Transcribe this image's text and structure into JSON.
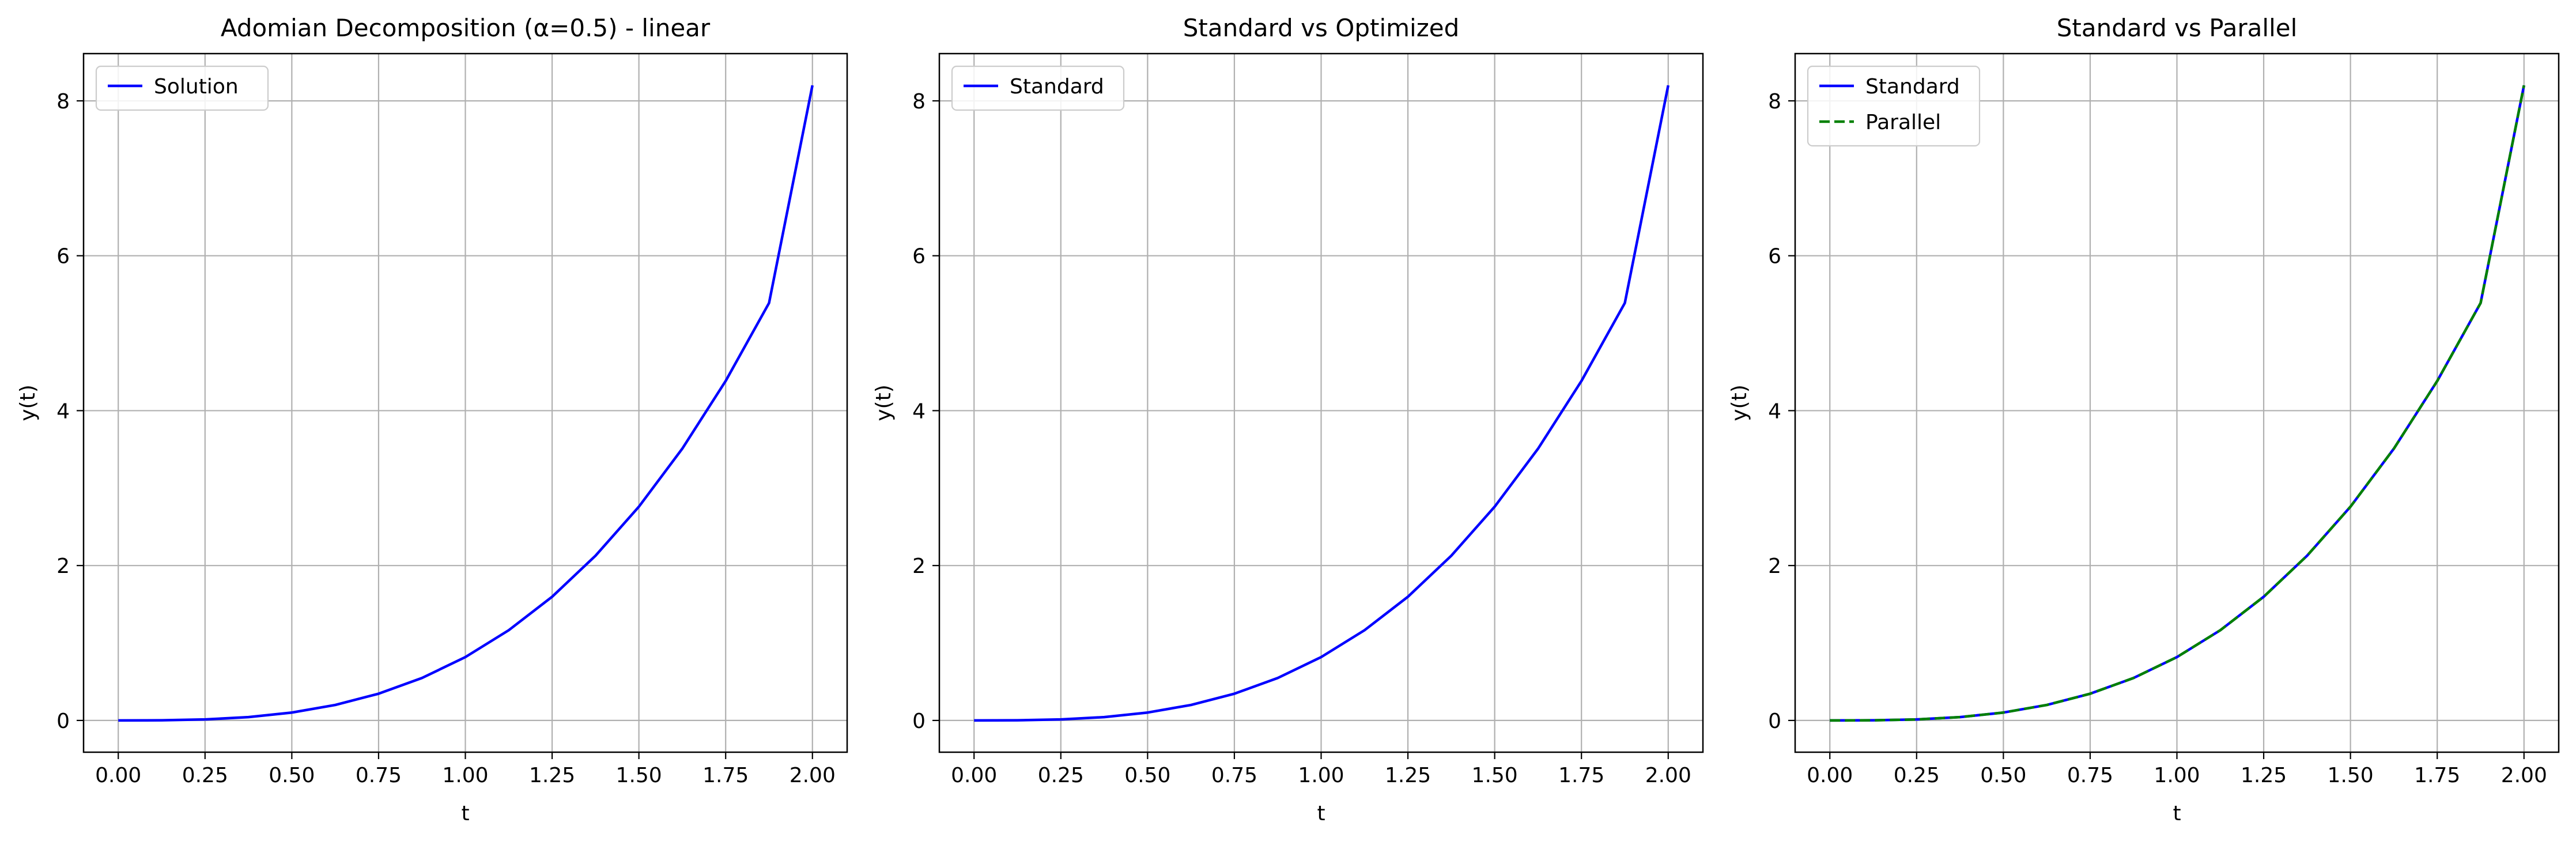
{
  "figure": {
    "background": "#ffffff"
  },
  "chart_data": [
    {
      "type": "line",
      "title": "Adomian Decomposition (α=0.5) - linear",
      "xlabel": "t",
      "ylabel": "y(t)",
      "xlim": [
        -0.1,
        2.1
      ],
      "ylim": [
        -0.41,
        8.61
      ],
      "xticks": [
        0,
        0.25,
        0.5,
        0.75,
        1.0,
        1.25,
        1.5,
        1.75,
        2.0
      ],
      "xtick_labels": [
        "0.00",
        "0.25",
        "0.50",
        "0.75",
        "1.00",
        "1.25",
        "1.50",
        "1.75",
        "2.00"
      ],
      "yticks": [
        0,
        2,
        4,
        6,
        8
      ],
      "ytick_labels": [
        "0",
        "2",
        "4",
        "6",
        "8"
      ],
      "grid": true,
      "legend_position": "upper-left",
      "series": [
        {
          "name": "Solution",
          "color": "#0000ff",
          "dash": "solid",
          "x": [
            0,
            0.125,
            0.25,
            0.375,
            0.5,
            0.625,
            0.75,
            0.875,
            1.0,
            1.125,
            1.25,
            1.375,
            1.5,
            1.625,
            1.75,
            1.875,
            2.0
          ],
          "y": [
            0.0,
            0.002,
            0.013,
            0.043,
            0.102,
            0.2,
            0.345,
            0.548,
            0.818,
            1.165,
            1.597,
            2.127,
            2.76,
            3.509,
            4.383,
            5.39,
            8.2
          ]
        }
      ]
    },
    {
      "type": "line",
      "title": "Standard vs Optimized",
      "xlabel": "t",
      "ylabel": "y(t)",
      "xlim": [
        -0.1,
        2.1
      ],
      "ylim": [
        -0.41,
        8.61
      ],
      "xticks": [
        0,
        0.25,
        0.5,
        0.75,
        1.0,
        1.25,
        1.5,
        1.75,
        2.0
      ],
      "xtick_labels": [
        "0.00",
        "0.25",
        "0.50",
        "0.75",
        "1.00",
        "1.25",
        "1.50",
        "1.75",
        "2.00"
      ],
      "yticks": [
        0,
        2,
        4,
        6,
        8
      ],
      "ytick_labels": [
        "0",
        "2",
        "4",
        "6",
        "8"
      ],
      "grid": true,
      "legend_position": "upper-left",
      "series": [
        {
          "name": "Standard",
          "color": "#0000ff",
          "dash": "solid",
          "x": [
            0,
            0.125,
            0.25,
            0.375,
            0.5,
            0.625,
            0.75,
            0.875,
            1.0,
            1.125,
            1.25,
            1.375,
            1.5,
            1.625,
            1.75,
            1.875,
            2.0
          ],
          "y": [
            0.0,
            0.002,
            0.013,
            0.043,
            0.102,
            0.2,
            0.345,
            0.548,
            0.818,
            1.165,
            1.597,
            2.127,
            2.76,
            3.509,
            4.383,
            5.39,
            8.2
          ]
        }
      ]
    },
    {
      "type": "line",
      "title": "Standard vs Parallel",
      "xlabel": "t",
      "ylabel": "y(t)",
      "xlim": [
        -0.1,
        2.1
      ],
      "ylim": [
        -0.41,
        8.61
      ],
      "xticks": [
        0,
        0.25,
        0.5,
        0.75,
        1.0,
        1.25,
        1.5,
        1.75,
        2.0
      ],
      "xtick_labels": [
        "0.00",
        "0.25",
        "0.50",
        "0.75",
        "1.00",
        "1.25",
        "1.50",
        "1.75",
        "2.00"
      ],
      "yticks": [
        0,
        2,
        4,
        6,
        8
      ],
      "ytick_labels": [
        "0",
        "2",
        "4",
        "6",
        "8"
      ],
      "grid": true,
      "legend_position": "upper-left",
      "series": [
        {
          "name": "Standard",
          "color": "#0000ff",
          "dash": "solid",
          "x": [
            0,
            0.125,
            0.25,
            0.375,
            0.5,
            0.625,
            0.75,
            0.875,
            1.0,
            1.125,
            1.25,
            1.375,
            1.5,
            1.625,
            1.75,
            1.875,
            2.0
          ],
          "y": [
            0.0,
            0.002,
            0.013,
            0.043,
            0.102,
            0.2,
            0.345,
            0.548,
            0.818,
            1.165,
            1.597,
            2.127,
            2.76,
            3.509,
            4.383,
            5.39,
            8.2
          ]
        },
        {
          "name": "Parallel",
          "color": "#008000",
          "dash": "dashed",
          "x": [
            0,
            0.125,
            0.25,
            0.375,
            0.5,
            0.625,
            0.75,
            0.875,
            1.0,
            1.125,
            1.25,
            1.375,
            1.5,
            1.625,
            1.75,
            1.875,
            2.0
          ],
          "y": [
            0.0,
            0.002,
            0.013,
            0.043,
            0.102,
            0.2,
            0.345,
            0.548,
            0.818,
            1.165,
            1.597,
            2.127,
            2.76,
            3.509,
            4.383,
            5.39,
            8.2
          ]
        }
      ]
    }
  ]
}
